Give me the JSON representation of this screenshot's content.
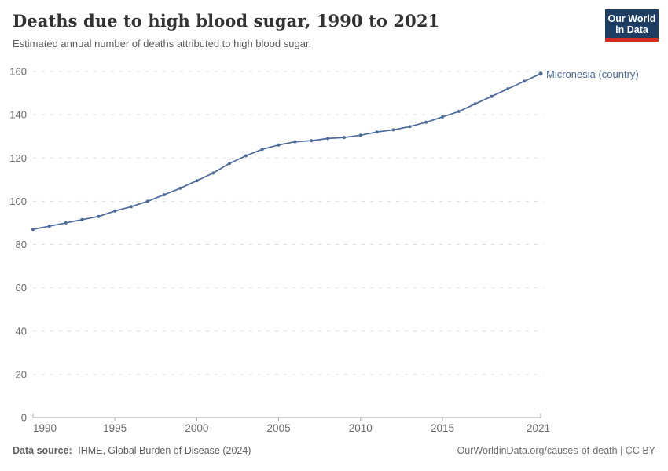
{
  "header": {
    "title": "Deaths due to high blood sugar, 1990 to 2021",
    "subtitle": "Estimated annual number of deaths attributed to high blood sugar.",
    "logo": {
      "line1": "Our World",
      "line2": "in Data"
    }
  },
  "footer": {
    "source_label": "Data source:",
    "source_text": "IHME, Global Burden of Disease (2024)",
    "link_text": "OurWorldinData.org/causes-of-death | CC BY"
  },
  "colors": {
    "line": "#4C6A9C",
    "grid": "#dddddd",
    "axis": "#a5a5a5",
    "tick_text": "#6b6b6b",
    "logo_bg": "#1d3d63",
    "logo_accent": "#d42b21"
  },
  "chart_data": {
    "type": "line",
    "title": "Deaths due to high blood sugar, 1990 to 2021",
    "subtitle": "Estimated annual number of deaths attributed to high blood sugar.",
    "xlabel": "",
    "ylabel": "",
    "xlim": [
      1990,
      2021
    ],
    "ylim": [
      0,
      160
    ],
    "x_ticks": [
      1990,
      1995,
      2000,
      2005,
      2010,
      2015,
      2021
    ],
    "y_ticks": [
      0,
      20,
      40,
      60,
      80,
      100,
      120,
      140,
      160
    ],
    "grid": "horizontal-dashed",
    "legend_position": "end-of-line-label",
    "series": [
      {
        "name": "Micronesia (country)",
        "x": [
          1990,
          1991,
          1992,
          1993,
          1994,
          1995,
          1996,
          1997,
          1998,
          1999,
          2000,
          2001,
          2002,
          2003,
          2004,
          2005,
          2006,
          2007,
          2008,
          2009,
          2010,
          2011,
          2012,
          2013,
          2014,
          2015,
          2016,
          2017,
          2018,
          2019,
          2020,
          2021
        ],
        "values": [
          87,
          88.5,
          90,
          91.5,
          93,
          95.5,
          97.5,
          100,
          103,
          106,
          109.5,
          113,
          117.5,
          121,
          124,
          126,
          127.5,
          128,
          129,
          129.5,
          130.5,
          132,
          133,
          134.5,
          136.5,
          139,
          141.5,
          145,
          148.5,
          152,
          155.5,
          159
        ]
      }
    ]
  }
}
